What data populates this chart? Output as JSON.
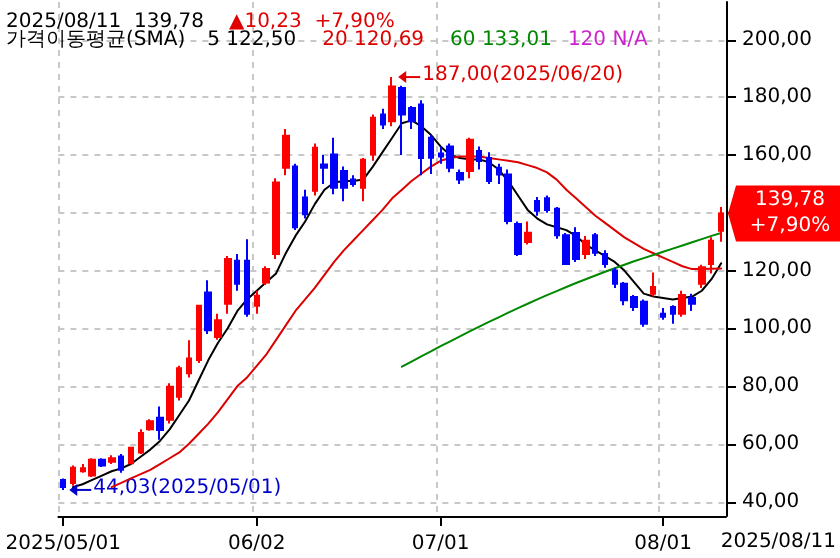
{
  "chart_data": {
    "type": "candlestick",
    "title": "2025/08/11  139,78",
    "subtitle": "▲10,23  +7,90%",
    "legend_title": "가격이동평균(SMA)",
    "categories": [
      "2025/05/01",
      null,
      null,
      null,
      null,
      null,
      null,
      null,
      null,
      null,
      null,
      null,
      null,
      null,
      null,
      null,
      null,
      null,
      null,
      null,
      "06/02",
      null,
      null,
      null,
      null,
      null,
      null,
      null,
      null,
      null,
      null,
      null,
      null,
      null,
      null,
      null,
      null,
      null,
      null,
      "07/01",
      null,
      null,
      null,
      null,
      null,
      null,
      null,
      null,
      null,
      null,
      null,
      null,
      null,
      null,
      null,
      null,
      null,
      null,
      null,
      null,
      null,
      null,
      "08/01",
      null,
      null,
      null,
      null,
      null,
      null
    ],
    "ohlc": [
      [
        47.5,
        48,
        44.03,
        45
      ],
      [
        46.4,
        52.5,
        45.5,
        51.7
      ],
      [
        50.5,
        53,
        50,
        51.5
      ],
      [
        49,
        55,
        48.5,
        54.5
      ],
      [
        54.5,
        55,
        52,
        52.5
      ],
      [
        53.8,
        56,
        53,
        55
      ],
      [
        55.6,
        56.5,
        50,
        51
      ],
      [
        53.3,
        59,
        53,
        58.6
      ],
      [
        57,
        65,
        56.5,
        63.7
      ],
      [
        65,
        68.5,
        64.5,
        67.8
      ],
      [
        69,
        72.9,
        61.4,
        64.8
      ],
      [
        68.3,
        81,
        67,
        79.8
      ],
      [
        76.3,
        87,
        75,
        86.2
      ],
      [
        84.4,
        95.9,
        83,
        89.5
      ],
      [
        89,
        108,
        88,
        107.8
      ],
      [
        112.4,
        116.6,
        98,
        99.3
      ],
      [
        97,
        105,
        96,
        102.8
      ],
      [
        108.5,
        125,
        105,
        124
      ],
      [
        123.4,
        125.7,
        113,
        115.4
      ],
      [
        123.4,
        130.8,
        104,
        105
      ],
      [
        107.8,
        113,
        105,
        111.3
      ],
      [
        115.9,
        121.5,
        115,
        120.5
      ],
      [
        125.7,
        152,
        124,
        150.5
      ],
      [
        155.6,
        169,
        153,
        166.7
      ],
      [
        156,
        157,
        134,
        135
      ],
      [
        145.3,
        148,
        138,
        139.5
      ],
      [
        147.6,
        164,
        146,
        162.5
      ],
      [
        156.7,
        160,
        150,
        155.6
      ],
      [
        160.2,
        166,
        146.4,
        148.7
      ],
      [
        154.5,
        156,
        144,
        148.7
      ],
      [
        151.5,
        153,
        149,
        150
      ],
      [
        148.7,
        159,
        144,
        158.4
      ],
      [
        160.2,
        174,
        158,
        172.9
      ],
      [
        174,
        176,
        169,
        170.6
      ],
      [
        171.7,
        187,
        170,
        183.7
      ],
      [
        183.2,
        184,
        160,
        174
      ],
      [
        176.3,
        177,
        169,
        171.7
      ],
      [
        177.5,
        179,
        153,
        159
      ],
      [
        166,
        167,
        153.4,
        159.1
      ],
      [
        160.5,
        163,
        157,
        159.5
      ],
      [
        163,
        164,
        154,
        155.6
      ],
      [
        153.8,
        155,
        150,
        151.5
      ],
      [
        154.5,
        166,
        152,
        165.3
      ],
      [
        161.4,
        163,
        155,
        157.9
      ],
      [
        159,
        161,
        150,
        151
      ],
      [
        155.6,
        157,
        150,
        153.3
      ],
      [
        153.3,
        155,
        136,
        137.2
      ],
      [
        136.1,
        137,
        125,
        125.7
      ],
      [
        129.9,
        137,
        129,
        133.1
      ],
      [
        144.1,
        145.5,
        139,
        140.7
      ],
      [
        145,
        146,
        140,
        141
      ],
      [
        141.4,
        142,
        131,
        132.2
      ],
      [
        132.2,
        133,
        122,
        122.3
      ],
      [
        133,
        135,
        123,
        124
      ],
      [
        125.7,
        132,
        124,
        130.3
      ],
      [
        132.2,
        133,
        125,
        126.2
      ],
      [
        125.7,
        127,
        121,
        122.3
      ],
      [
        120,
        121,
        114,
        115.4
      ],
      [
        115.4,
        116,
        108,
        109.7
      ],
      [
        110.8,
        111.5,
        106,
        107.4
      ],
      [
        109.2,
        110,
        100.5,
        101.6
      ],
      [
        112,
        119.3,
        111,
        114.3
      ],
      [
        105,
        107,
        103,
        104
      ],
      [
        107.4,
        108,
        101.6,
        105
      ],
      [
        105,
        113,
        104,
        111.5
      ],
      [
        110.5,
        112,
        106,
        108.5
      ],
      [
        115.4,
        122,
        114,
        121.1
      ],
      [
        122.3,
        131.5,
        119,
        130.3
      ],
      [
        133.8,
        142,
        130,
        139.78
      ]
    ],
    "colors": [
      "#0000ff",
      "#ff0000",
      "#ff0000",
      "#ff0000",
      "#0000ff",
      "#ff0000",
      "#0000ff",
      "#ff0000",
      "#ff0000",
      "#ff0000",
      "#0000ff",
      "#ff0000",
      "#ff0000",
      "#ff0000",
      "#ff0000",
      "#0000ff",
      "#ff0000",
      "#ff0000",
      "#0000ff",
      "#0000ff",
      "#ff0000",
      "#ff0000",
      "#ff0000",
      "#ff0000",
      "#0000ff",
      "#0000ff",
      "#ff0000",
      "#0000ff",
      "#0000ff",
      "#0000ff",
      "#0000ff",
      "#ff0000",
      "#ff0000",
      "#0000ff",
      "#ff0000",
      "#0000ff",
      "#0000ff",
      "#0000ff",
      "#0000ff",
      "#0000ff",
      "#0000ff",
      "#0000ff",
      "#ff0000",
      "#0000ff",
      "#0000ff",
      "#0000ff",
      "#0000ff",
      "#0000ff",
      "#ff0000",
      "#0000ff",
      "#0000ff",
      "#0000ff",
      "#0000ff",
      "#0000ff",
      "#ff0000",
      "#0000ff",
      "#0000ff",
      "#0000ff",
      "#0000ff",
      "#0000ff",
      "#0000ff",
      "#ff0000",
      "#0000ff",
      "#0000ff",
      "#ff0000",
      "#0000ff",
      "#ff0000",
      "#ff0000",
      "#ff0000"
    ],
    "series": [
      {
        "type": "line",
        "name": "5 122,50",
        "color": "#000000",
        "values": [
          null,
          45,
          46,
          47.5,
          49,
          50.5,
          51.5,
          53,
          55.5,
          58,
          61,
          65,
          70,
          75,
          82,
          89,
          95,
          100,
          106,
          110,
          113,
          116,
          119,
          126,
          132,
          137,
          143,
          148,
          150.5,
          151,
          151,
          151.5,
          156,
          161,
          166,
          171,
          172,
          170,
          167,
          163,
          160,
          159,
          158.5,
          158.5,
          157.5,
          155,
          151,
          146,
          141,
          138,
          136,
          135,
          134,
          132,
          129,
          127,
          125,
          123,
          120,
          116,
          112,
          111,
          110.5,
          110,
          110.5,
          111,
          113,
          117,
          122.5
        ]
      },
      {
        "type": "line",
        "name": "20 120,69",
        "color": "#dd0000",
        "values": [
          null,
          null,
          null,
          null,
          null,
          45,
          46.5,
          48,
          49.5,
          51,
          53,
          55,
          57,
          60,
          63.5,
          67,
          71,
          75.5,
          80,
          83,
          87,
          91,
          96,
          101,
          106,
          110,
          114,
          118.5,
          123,
          127,
          130.5,
          134,
          137.5,
          141,
          145,
          148,
          151,
          153.5,
          156,
          158,
          159,
          159.5,
          159.5,
          159.5,
          159,
          158.5,
          158,
          157.5,
          156.5,
          155.5,
          154,
          151.5,
          148,
          145,
          142,
          139,
          136.5,
          134,
          131.5,
          129.5,
          127.5,
          126,
          124.5,
          123,
          121.5,
          120.5,
          120.5,
          120.6,
          120.69
        ]
      },
      {
        "type": "line",
        "name": "60 133,01",
        "color": "#008800",
        "values": [
          null,
          null,
          null,
          null,
          null,
          null,
          null,
          null,
          null,
          null,
          null,
          null,
          null,
          null,
          null,
          null,
          null,
          null,
          null,
          null,
          null,
          null,
          null,
          null,
          null,
          null,
          null,
          null,
          null,
          null,
          null,
          null,
          null,
          null,
          null,
          86.7,
          88.5,
          90.3,
          92,
          93.8,
          95.5,
          97.2,
          98.9,
          100.6,
          102.2,
          103.8,
          105.4,
          107,
          108.5,
          110,
          111.5,
          112.9,
          114.3,
          115.7,
          117,
          118.3,
          119.6,
          120.8,
          122,
          123.2,
          124.3,
          125.4,
          126.5,
          127.6,
          128.7,
          129.8,
          130.9,
          132,
          133.01
        ]
      }
    ],
    "annotations": [
      "120 N/A",
      "187,00(2025/06/20)",
      "44,03(2025/05/01)",
      "139,78\n+7,90%",
      "2025/08/11"
    ],
    "ylim": [
      35,
      213
    ],
    "yticks": [
      {
        "value": 40,
        "label": "40,00"
      },
      {
        "value": 60,
        "label": "60,00"
      },
      {
        "value": 80,
        "label": "80,00"
      },
      {
        "value": 100,
        "label": "100,00"
      },
      {
        "value": 120,
        "label": "120,00"
      },
      {
        "value": 140,
        "label": null
      },
      {
        "value": 160,
        "label": "160,00"
      },
      {
        "value": 180,
        "label": "180,00"
      },
      {
        "value": 200,
        "label": "200,00"
      }
    ],
    "grid": true,
    "legend": "top left",
    "marker": "none",
    "line_style": "solid"
  }
}
